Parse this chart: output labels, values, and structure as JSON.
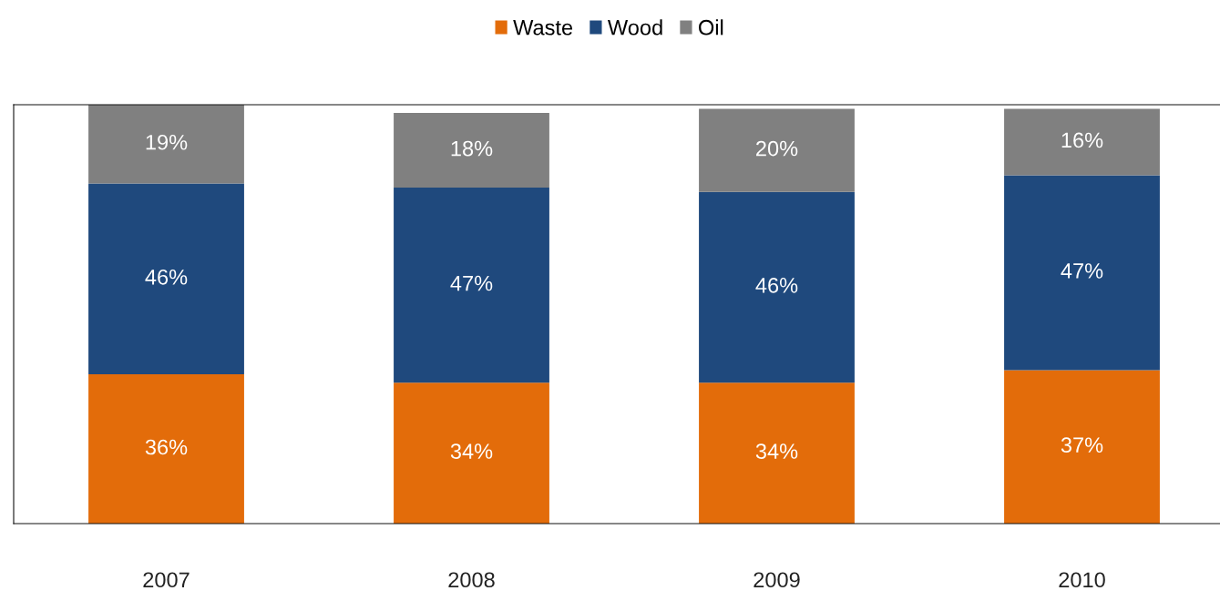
{
  "chart_data": {
    "type": "bar",
    "stacked": true,
    "legend": "top",
    "grid": false,
    "categories": [
      "2007",
      "2008",
      "2009",
      "2010"
    ],
    "series": [
      {
        "name": "Waste",
        "color": "#e36c0a",
        "values": [
          36,
          34,
          34,
          37
        ],
        "value_labels": [
          "36%",
          "34%",
          "34%",
          "37%"
        ]
      },
      {
        "name": "Wood",
        "color": "#1f497d",
        "values": [
          46,
          47,
          46,
          47
        ],
        "value_labels": [
          "46%",
          "47%",
          "46%",
          "47%"
        ]
      },
      {
        "name": "Oil",
        "color": "#808080",
        "values": [
          19,
          18,
          20,
          16
        ],
        "value_labels": [
          "19%",
          "18%",
          "20%",
          "16%"
        ]
      }
    ]
  }
}
